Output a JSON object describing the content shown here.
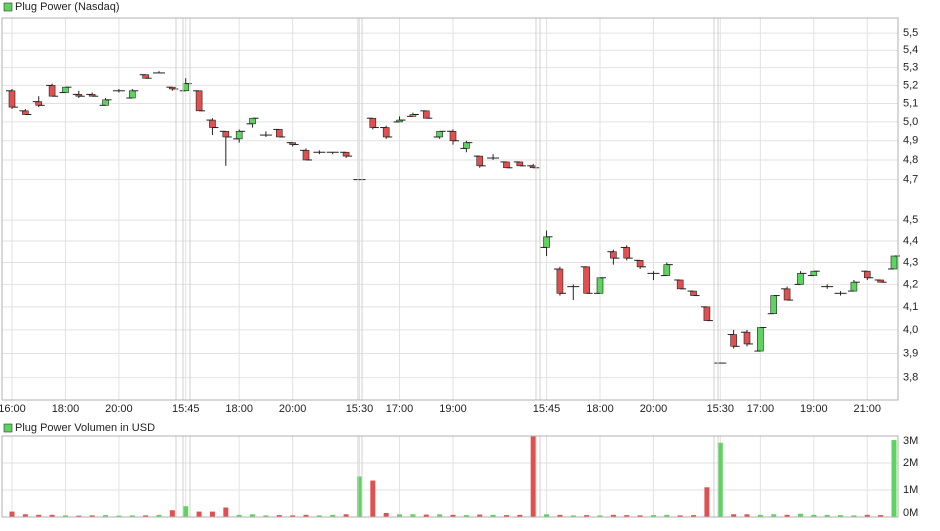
{
  "chart_data": [
    {
      "type": "candlestick",
      "title": "Plug Power (Nasdaq)",
      "categories": [
        "16:00",
        null,
        null,
        null,
        "18:00",
        null,
        null,
        null,
        "20:00",
        null,
        null,
        null,
        null,
        "15:45",
        null,
        null,
        null,
        "18:00",
        null,
        null,
        null,
        "20:00",
        null,
        null,
        null,
        null,
        "15:30",
        null,
        null,
        "17:00",
        null,
        null,
        null,
        "19:00",
        null,
        null,
        null,
        null,
        null,
        null,
        "15:45",
        null,
        null,
        null,
        "18:00",
        null,
        null,
        null,
        "20:00",
        null,
        null,
        null,
        null,
        "15:30",
        null,
        null,
        "17:00",
        null,
        null,
        null,
        "19:00",
        null,
        null,
        null,
        "21:00",
        null,
        null
      ],
      "open": [
        5.17,
        5.06,
        5.11,
        5.2,
        5.16,
        5.15,
        5.15,
        5.09,
        5.17,
        5.13,
        5.26,
        5.27,
        5.19,
        5.17,
        5.17,
        5.01,
        4.95,
        4.91,
        4.99,
        4.93,
        4.96,
        4.89,
        4.85,
        4.84,
        4.84,
        4.84,
        4.7,
        5.02,
        4.97,
        5.0,
        5.03,
        5.06,
        4.92,
        4.95,
        4.86,
        4.82,
        4.81,
        4.79,
        4.79,
        4.77,
        4.37,
        4.27,
        4.19,
        4.28,
        4.16,
        4.35,
        4.37,
        4.31,
        4.25,
        4.24,
        4.22,
        4.17,
        4.1,
        3.86,
        3.98,
        3.99,
        3.91,
        4.07,
        4.18,
        4.2,
        4.24,
        4.19,
        4.16,
        4.17,
        4.26,
        4.22,
        4.27
      ],
      "close": [
        5.08,
        5.04,
        5.09,
        5.14,
        5.19,
        5.14,
        5.14,
        5.12,
        5.17,
        5.17,
        5.24,
        5.27,
        5.18,
        5.21,
        5.06,
        4.97,
        4.92,
        4.95,
        5.02,
        4.93,
        4.92,
        4.88,
        4.8,
        4.84,
        4.84,
        4.82,
        4.7,
        4.97,
        4.92,
        5.01,
        5.04,
        5.02,
        4.95,
        4.9,
        4.89,
        4.77,
        4.81,
        4.76,
        4.77,
        4.76,
        4.42,
        4.16,
        4.19,
        4.16,
        4.23,
        4.32,
        4.32,
        4.28,
        4.25,
        4.29,
        4.18,
        4.15,
        4.04,
        3.86,
        3.93,
        3.94,
        4.01,
        4.15,
        4.13,
        4.25,
        4.26,
        4.19,
        4.16,
        4.21,
        4.23,
        4.21,
        4.33
      ],
      "high": [
        5.18,
        5.07,
        5.14,
        5.21,
        5.19,
        5.17,
        5.16,
        5.13,
        5.18,
        5.18,
        5.26,
        5.28,
        5.19,
        5.24,
        5.17,
        5.02,
        4.95,
        4.96,
        5.02,
        4.95,
        4.96,
        4.89,
        4.86,
        4.85,
        4.84,
        4.84,
        4.7,
        5.02,
        4.98,
        5.03,
        5.05,
        5.06,
        4.95,
        4.96,
        4.9,
        4.82,
        4.83,
        4.79,
        4.79,
        4.78,
        4.45,
        4.28,
        4.2,
        4.28,
        4.23,
        4.36,
        4.38,
        4.31,
        4.26,
        4.3,
        4.22,
        4.17,
        4.1,
        3.86,
        4.0,
        4.0,
        4.01,
        4.15,
        4.19,
        4.26,
        4.26,
        4.2,
        4.17,
        4.22,
        4.26,
        4.22,
        4.33
      ],
      "low": [
        5.07,
        5.04,
        5.08,
        5.14,
        5.16,
        5.13,
        5.14,
        5.09,
        5.16,
        5.13,
        5.24,
        5.27,
        5.17,
        5.17,
        5.06,
        4.93,
        4.77,
        4.89,
        4.97,
        4.92,
        4.92,
        4.87,
        4.8,
        4.83,
        4.83,
        4.81,
        4.7,
        4.96,
        4.91,
        5.0,
        5.03,
        5.02,
        4.91,
        4.88,
        4.84,
        4.76,
        4.8,
        4.76,
        4.77,
        4.76,
        4.33,
        4.15,
        4.13,
        4.16,
        4.16,
        4.29,
        4.31,
        4.27,
        4.22,
        4.24,
        4.18,
        4.15,
        4.04,
        3.86,
        3.92,
        3.93,
        3.91,
        4.07,
        4.13,
        4.2,
        4.24,
        4.18,
        4.15,
        4.17,
        4.22,
        4.21,
        4.27
      ],
      "up_color": "#5fd35f",
      "down_color": "#e05050",
      "ylim": [
        3.71,
        5.59
      ],
      "log": true,
      "grid": true,
      "yticks": [
        {
          "value": 3.8,
          "label": "3,8"
        },
        {
          "value": 3.9,
          "label": "3,9"
        },
        {
          "value": 4,
          "label": "4,0"
        },
        {
          "value": 4.1,
          "label": "4,1"
        },
        {
          "value": 4.2,
          "label": "4,2"
        },
        {
          "value": 4.3,
          "label": "4,3"
        },
        {
          "value": 4.4,
          "label": "4,4"
        },
        {
          "value": 4.5,
          "label": "4,5"
        },
        {
          "value": 4.7,
          "label": "4,7"
        },
        {
          "value": 4.8,
          "label": "4,8"
        },
        {
          "value": 4.9,
          "label": "4,9"
        },
        {
          "value": 5,
          "label": "5,0"
        },
        {
          "value": 5.1,
          "label": "5,1"
        },
        {
          "value": 5.2,
          "label": "5,2"
        },
        {
          "value": 5.3,
          "label": "5,3"
        },
        {
          "value": 5.4,
          "label": "5,4"
        },
        {
          "value": 5.5,
          "label": "5,5"
        }
      ]
    },
    {
      "type": "bar",
      "title": "Plug Power Volumen in USD",
      "values": [
        200000,
        100000,
        80000,
        80000,
        60000,
        50000,
        60000,
        70000,
        50000,
        60000,
        60000,
        80000,
        250000,
        400000,
        200000,
        200000,
        350000,
        80000,
        100000,
        60000,
        70000,
        60000,
        80000,
        60000,
        80000,
        100000,
        1500000,
        1350000,
        150000,
        100000,
        100000,
        90000,
        100000,
        80000,
        70000,
        90000,
        80000,
        70000,
        80000,
        3000000,
        100000,
        80000,
        60000,
        70000,
        60000,
        80000,
        70000,
        60000,
        70000,
        80000,
        60000,
        70000,
        1100000,
        2750000,
        100000,
        100000,
        80000,
        100000,
        80000,
        120000,
        80000,
        80000,
        70000,
        60000,
        80000,
        70000,
        2850000
      ],
      "ylim": [
        0,
        3000000
      ],
      "grid": true,
      "yticks": [
        {
          "value": 0,
          "label": "0M"
        },
        {
          "value": 1000000,
          "label": "1M"
        },
        {
          "value": 2000000,
          "label": "2M"
        },
        {
          "value": 3000000,
          "label": "3M"
        }
      ]
    }
  ]
}
